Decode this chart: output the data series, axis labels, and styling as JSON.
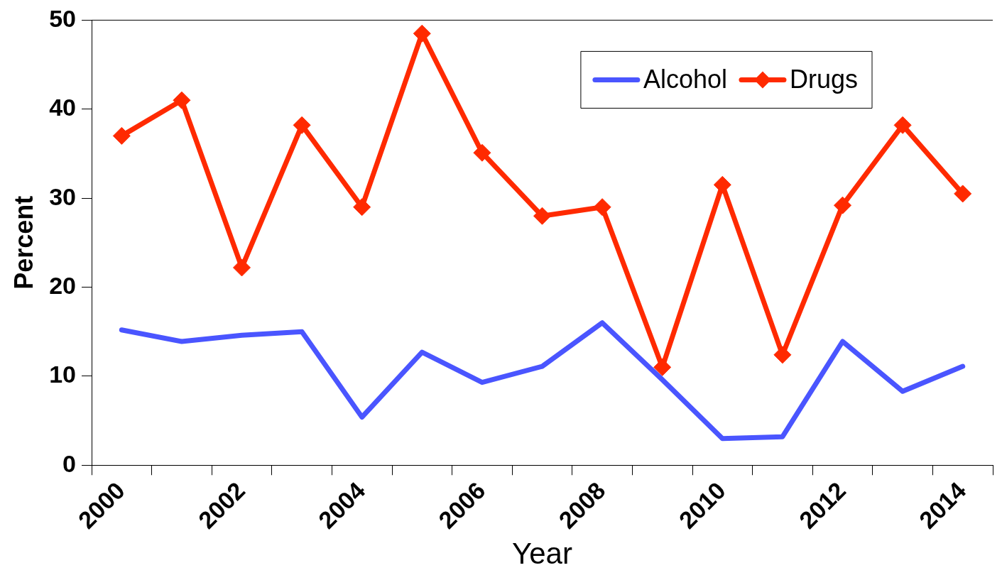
{
  "chart_data": {
    "type": "line",
    "xlabel": "Year",
    "ylabel": "Percent",
    "categories": [
      "2000",
      null,
      "2002",
      null,
      "2004",
      null,
      "2006",
      null,
      "2008",
      null,
      "2010",
      null,
      "2012",
      null,
      "2014"
    ],
    "series": [
      {
        "name": "Alcohol",
        "color": "#4a55ff",
        "marker": "none",
        "values": [
          15.2,
          13.9,
          14.6,
          15.0,
          5.4,
          12.7,
          9.3,
          11.1,
          16.0,
          9.6,
          3.0,
          3.2,
          13.9,
          8.3,
          11.1
        ]
      },
      {
        "name": "Drugs",
        "color": "#ff2a00",
        "marker": "diamond",
        "values": [
          37,
          41,
          22.2,
          38.2,
          29.0,
          48.5,
          35.1,
          28.0,
          29.0,
          11.0,
          31.5,
          12.4,
          29.2,
          38.2,
          30.5
        ]
      }
    ],
    "ylim": [
      0,
      50
    ],
    "yticks": [
      0,
      10,
      20,
      30,
      40,
      50
    ],
    "grid": false,
    "legend": "top right",
    "line_style": "solid"
  }
}
